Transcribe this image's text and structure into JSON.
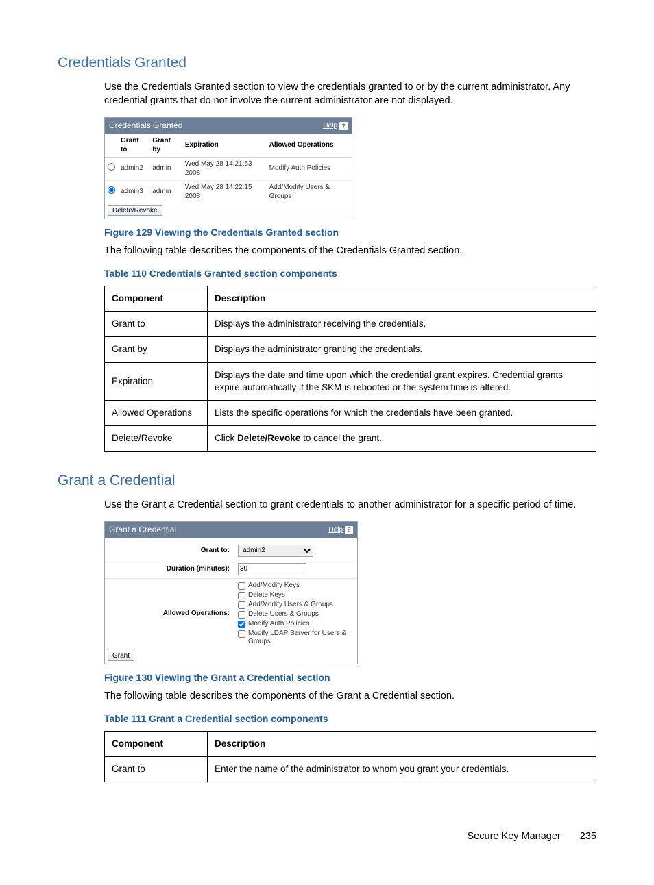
{
  "colors": {
    "heading": "#3b6ea5",
    "caption": "#1f5da0",
    "panel_header_bg": "#6d7f98",
    "panel_border": "#9aa3b0"
  },
  "section1": {
    "title": "Credentials Granted",
    "intro": "Use the Credentials Granted section to view the credentials granted to or by the current administrator. Any credential grants that do not involve the current administrator are not displayed.",
    "panel": {
      "title": "Credentials Granted",
      "help": "Help",
      "columns": [
        "Grant to",
        "Grant by",
        "Expiration",
        "Allowed Operations"
      ],
      "rows": [
        {
          "selected": false,
          "grant_to": "admin2",
          "grant_by": "admin",
          "expiration": "Wed May 28 14:21:53 2008",
          "ops": "Modify Auth Policies"
        },
        {
          "selected": true,
          "grant_to": "admin3",
          "grant_by": "admin",
          "expiration": "Wed May 28 14:22:15 2008",
          "ops": "Add/Modify Users & Groups"
        }
      ],
      "button": "Delete/Revoke"
    },
    "figure_caption": "Figure 129 Viewing the Credentials Granted section",
    "lead": "The following table describes the components of the Credentials Granted section.",
    "table_caption": "Table 110 Credentials Granted section components",
    "table": {
      "head": [
        "Component",
        "Description"
      ],
      "rows": [
        [
          "Grant to",
          "Displays the administrator receiving the credentials."
        ],
        [
          "Grant by",
          "Displays the administrator granting the credentials."
        ],
        [
          "Expiration",
          "Displays the date and time upon which the credential grant expires. Credential grants expire automatically if the SKM is rebooted or the system time is altered."
        ],
        [
          "Allowed Operations",
          "Lists the specific operations for which the credentials have been granted."
        ],
        [
          "Delete/Revoke",
          "Click <b>Delete/Revoke</b> to cancel the grant."
        ]
      ]
    }
  },
  "section2": {
    "title": "Grant a Credential",
    "intro": "Use the Grant a Credential section to grant credentials to another administrator for a specific period of time.",
    "panel": {
      "title": "Grant a Credential",
      "help": "Help",
      "grant_to_label": "Grant to:",
      "grant_to_value": "admin2",
      "duration_label": "Duration (minutes):",
      "duration_value": "30",
      "ops_label": "Allowed Operations:",
      "ops": [
        {
          "label": "Add/Modify Keys",
          "checked": false
        },
        {
          "label": "Delete Keys",
          "checked": false
        },
        {
          "label": "Add/Modify Users & Groups",
          "checked": false
        },
        {
          "label": "Delete Users & Groups",
          "checked": false
        },
        {
          "label": "Modify Auth Policies",
          "checked": true
        },
        {
          "label": "Modify LDAP Server for Users & Groups",
          "checked": false
        }
      ],
      "button": "Grant"
    },
    "figure_caption": "Figure 130 Viewing the Grant a Credential section",
    "lead": "The following table describes the components of the Grant a Credential section.",
    "table_caption": "Table 111 Grant a Credential section components",
    "table": {
      "head": [
        "Component",
        "Description"
      ],
      "rows": [
        [
          "Grant to",
          "Enter the name of the administrator to whom you grant your credentials."
        ]
      ]
    }
  },
  "footer": {
    "doc": "Secure Key Manager",
    "page": "235"
  }
}
